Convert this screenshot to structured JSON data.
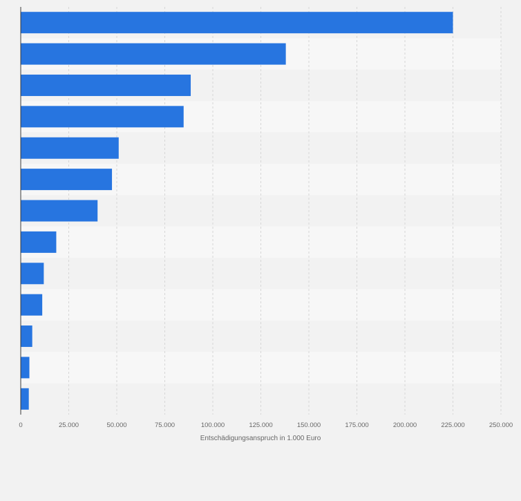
{
  "chart_data": {
    "type": "bar",
    "orientation": "horizontal",
    "xlabel": "Entschädigungsanspruch in 1.000 Euro",
    "ylabel": "",
    "xlim": [
      0,
      250000
    ],
    "x_ticks": [
      0,
      25000,
      50000,
      75000,
      100000,
      125000,
      150000,
      175000,
      200000,
      225000,
      250000
    ],
    "x_tick_labels": [
      "0",
      "25.000",
      "50.000",
      "75.000",
      "100.000",
      "125.000",
      "150.000",
      "175.000",
      "200.000",
      "225.000",
      "250.000"
    ],
    "values": [
      225000,
      138000,
      88500,
      84800,
      51000,
      47500,
      40000,
      18500,
      12000,
      11200,
      6000,
      4500,
      4200
    ],
    "grid": "vertical dashed",
    "colors": {
      "bar": "#2775e0",
      "band_light": "#f7f7f7",
      "band_dark": "#f2f2f2",
      "grid": "#d6d6d6",
      "axis": "#3a3a3a",
      "text": "#666666"
    }
  }
}
